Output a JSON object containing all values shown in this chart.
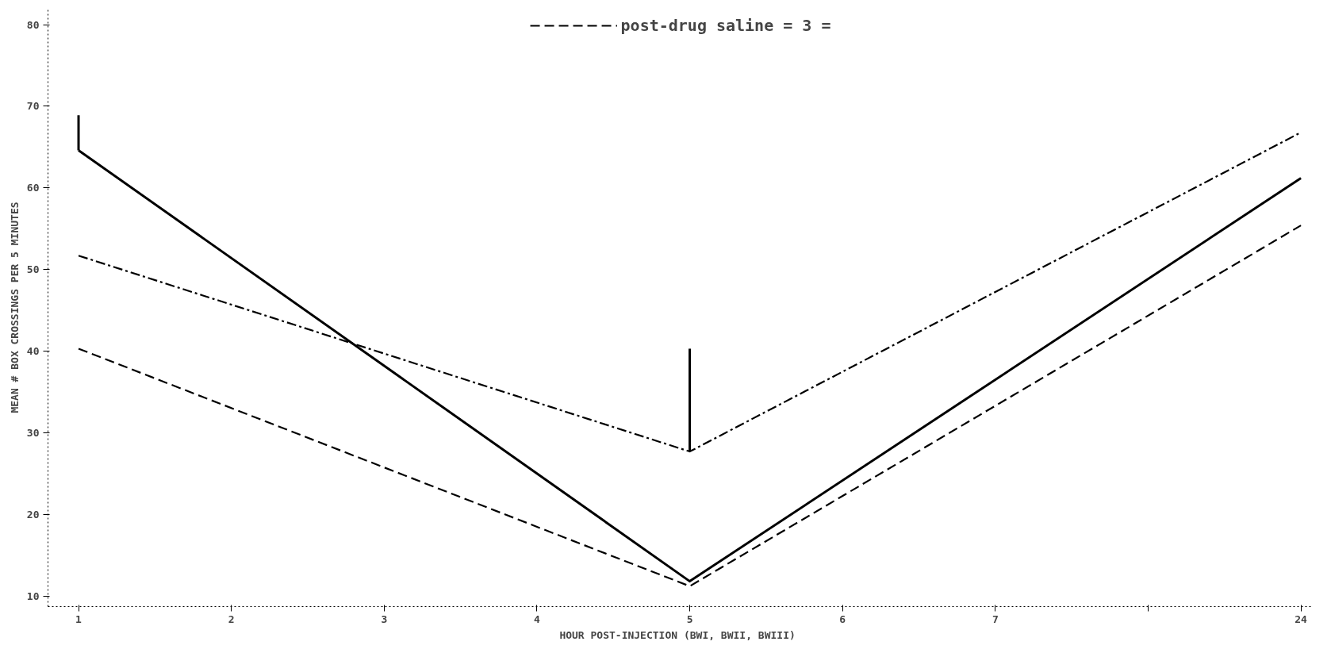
{
  "chart_data": {
    "type": "line",
    "xlabel": "HOUR  POST-INJECTION (BWI, BWII, BWIII)",
    "ylabel": "MEAN # BOX CROSSINGS PER 5 MINUTES",
    "categories": [
      "1",
      "2",
      "3",
      "4",
      "5",
      "6",
      "7",
      null,
      "24"
    ],
    "ylim": [
      8.7,
      82
    ],
    "yticks": [
      10,
      20,
      30,
      40,
      50,
      60,
      70,
      80
    ],
    "grid": false,
    "legend": "top",
    "marker": "none",
    "series": [
      {
        "color": "#000000",
        "line_style": "solid",
        "x": [
          "1",
          "5",
          "24"
        ],
        "values": [
          64.6,
          11.8,
          61.2
        ],
        "errors": [
          [
            64.6,
            68.9
          ],
          null,
          null
        ]
      },
      {
        "color": "#000000",
        "line_style": "dashdot",
        "x": [
          "1",
          "5",
          "24"
        ],
        "values": [
          51.7,
          27.7,
          66.8
        ],
        "errors": [
          null,
          [
            27.7,
            40.3
          ],
          null
        ]
      },
      {
        "name": "post-drug saline = 3 =",
        "color": "#000000",
        "line_style": "dashed",
        "x": [
          "1",
          "5",
          "24"
        ],
        "values": [
          40.3,
          11.2,
          55.4
        ]
      }
    ]
  }
}
